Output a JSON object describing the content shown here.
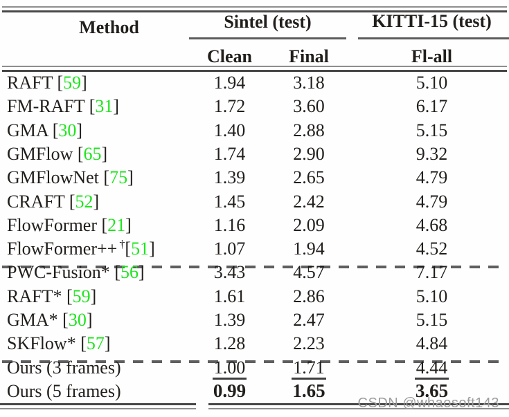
{
  "header": {
    "method": "Method",
    "group_sintel": "Sintel (test)",
    "group_kitti": "KITTI-15 (test)",
    "col_clean": "Clean",
    "col_final": "Final",
    "col_flall": "Fl-all"
  },
  "symbols": {
    "open": " [",
    "open_tight": "[",
    "close": "]",
    "dagger": "†"
  },
  "colors": {
    "citation_green": "#1de51d",
    "text": "#211e1b",
    "rule_dark": "#474747",
    "rule_light": "#8e8e8e",
    "watermark_gray": "#9d9d9d"
  },
  "rows": [
    {
      "name": "RAFT",
      "ref": "59",
      "clean": "1.94",
      "final": "3.18",
      "flall": "5.10"
    },
    {
      "name": "FM-RAFT",
      "ref": "31",
      "clean": "1.72",
      "final": "3.60",
      "flall": "6.17"
    },
    {
      "name": "GMA",
      "ref": "30",
      "clean": "1.40",
      "final": "2.88",
      "flall": "5.15"
    },
    {
      "name": "GMFlow",
      "ref": "65",
      "clean": "1.74",
      "final": "2.90",
      "flall": "9.32"
    },
    {
      "name": "GMFlowNet",
      "ref": "75",
      "clean": "1.39",
      "final": "2.65",
      "flall": "4.79"
    },
    {
      "name": "CRAFT",
      "ref": "52",
      "clean": "1.45",
      "final": "2.42",
      "flall": "4.79"
    },
    {
      "name": "FlowFormer",
      "ref": "21",
      "clean": "1.16",
      "final": "2.09",
      "flall": "4.68"
    },
    {
      "name": "FlowFormer++",
      "ref": "51",
      "clean": "1.07",
      "final": "1.94",
      "flall": "4.52",
      "dagger": true
    },
    {
      "name": "PWC-Fusion*",
      "ref": "56",
      "clean": "3.43",
      "final": "4.57",
      "flall": "7.17"
    },
    {
      "name": "RAFT*",
      "ref": "59",
      "clean": "1.61",
      "final": "2.86",
      "flall": "5.10"
    },
    {
      "name": "GMA*",
      "ref": "30",
      "clean": "1.39",
      "final": "2.47",
      "flall": "5.15"
    },
    {
      "name": "SKFlow*",
      "ref": "57",
      "clean": "1.28",
      "final": "2.23",
      "flall": "4.84"
    },
    {
      "name": "Ours (3 frames)",
      "clean": "1.00",
      "final": "1.71",
      "flall": "4.44",
      "style": "underline"
    },
    {
      "name": "Ours (5 frames)",
      "clean": "0.99",
      "final": "1.65",
      "flall": "3.65",
      "style": "bold"
    }
  ],
  "watermark": "CSDN @whaosoft143"
}
